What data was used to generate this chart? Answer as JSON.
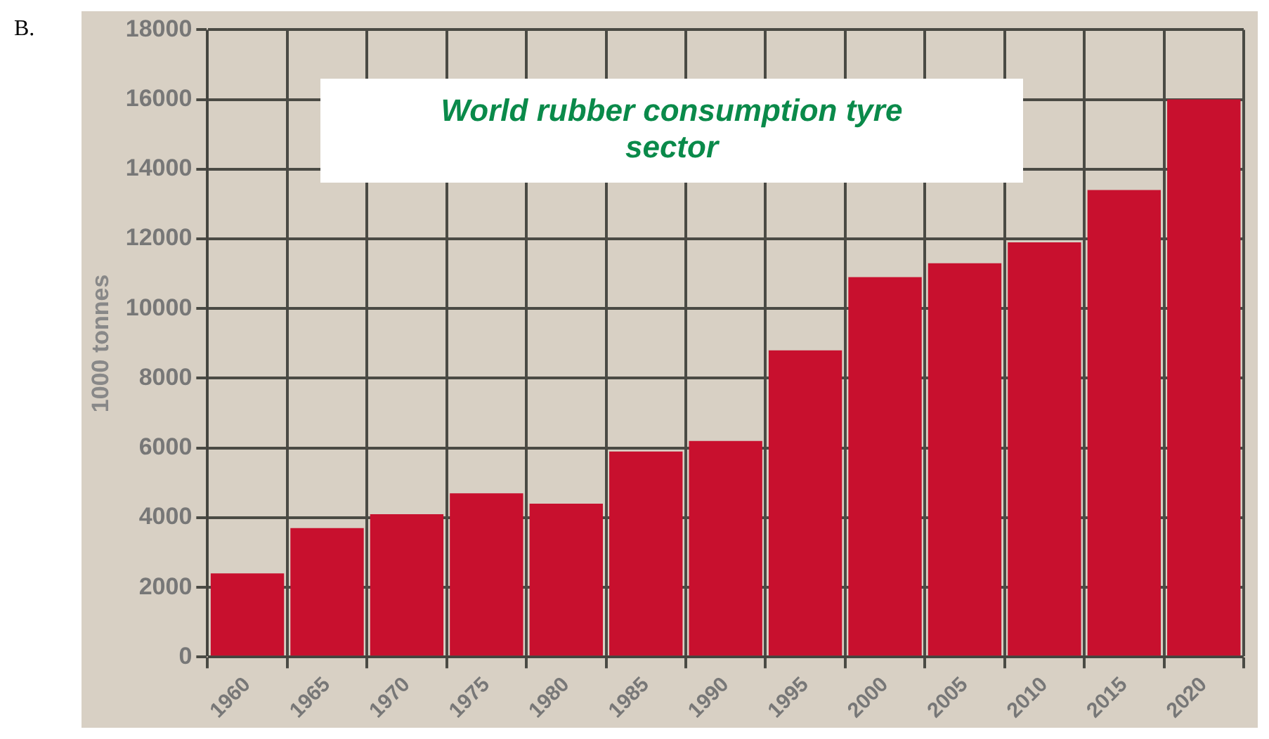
{
  "chart_data": {
    "type": "bar",
    "title": "World rubber consumption tyre sector",
    "ylabel": "1000 tonnes",
    "annotations": [
      "B."
    ],
    "categories": [
      "1960",
      "1965",
      "1970",
      "1975",
      "1980",
      "1985",
      "1990",
      "1995",
      "2000",
      "2005",
      "2010",
      "2015",
      "2020"
    ],
    "values": [
      2400,
      3700,
      4100,
      4700,
      4400,
      5900,
      6200,
      8800,
      10900,
      11300,
      11900,
      13400,
      16000
    ],
    "color": "#c8102e",
    "ylim": [
      0,
      18000
    ],
    "yticks": [
      0,
      2000,
      4000,
      6000,
      8000,
      10000,
      12000,
      14000,
      16000,
      18000
    ],
    "grid": true
  }
}
